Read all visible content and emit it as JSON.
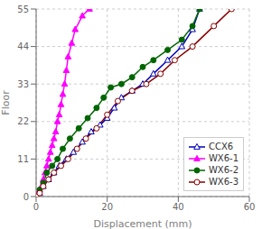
{
  "chart_data": {
    "type": "line",
    "xlabel": "Displacement (mm)",
    "ylabel": "Floor",
    "xlim": [
      0,
      60
    ],
    "ylim": [
      0,
      55
    ],
    "xticks": [
      0,
      20,
      40,
      60
    ],
    "yticks": [
      0,
      11,
      22,
      33,
      44,
      55
    ],
    "grid": true,
    "legend": "lower right",
    "series": [
      {
        "name": "CCX6",
        "color": "#0000BB",
        "marker": "triangle-open",
        "x": [
          0,
          1,
          2,
          3.5,
          5,
          6.5,
          8.5,
          10.5,
          13,
          15.5,
          18,
          20,
          22,
          24,
          27,
          30,
          33,
          37,
          41,
          44,
          46
        ],
        "values": [
          0,
          1,
          3,
          5,
          7,
          9,
          11,
          13,
          16,
          19,
          21,
          23,
          26,
          29,
          31,
          33,
          36,
          40,
          44,
          49,
          55
        ]
      },
      {
        "name": "WX6-1",
        "color": "#FF00FF",
        "marker": "triangle",
        "x": [
          0,
          0.5,
          1,
          1.5,
          2,
          2.5,
          3,
          3.5,
          4,
          4.5,
          5,
          5.5,
          6,
          6.5,
          7,
          7.5,
          8,
          8.5,
          9,
          10,
          11,
          13,
          15
        ],
        "values": [
          0,
          1,
          2,
          3,
          5,
          7,
          9,
          11,
          13,
          15,
          17,
          19,
          22,
          24,
          27,
          30,
          33,
          37,
          41,
          45,
          49,
          53,
          55
        ]
      },
      {
        "name": "WX6-2",
        "color": "#006600",
        "marker": "circle",
        "x": [
          0,
          1,
          2,
          3,
          4.5,
          6,
          7.5,
          9.5,
          12,
          14.5,
          17,
          19,
          21,
          24,
          27,
          30,
          33,
          37,
          41,
          44,
          46
        ],
        "values": [
          0,
          2,
          4,
          7,
          9,
          11,
          14,
          17,
          20,
          23,
          26,
          29,
          32,
          33,
          35,
          38,
          40,
          43,
          46,
          50,
          55
        ]
      },
      {
        "name": "WX6-3",
        "color": "#880000",
        "marker": "circle-open",
        "x": [
          0,
          1,
          2,
          3.5,
          5,
          7,
          9,
          11.5,
          14,
          17,
          20,
          23,
          27,
          31,
          35,
          39,
          44,
          50,
          55
        ],
        "values": [
          0,
          1,
          3,
          5,
          7,
          9,
          11,
          14,
          17,
          20,
          24,
          28,
          31,
          33,
          36,
          40,
          44,
          50,
          55
        ]
      }
    ]
  }
}
